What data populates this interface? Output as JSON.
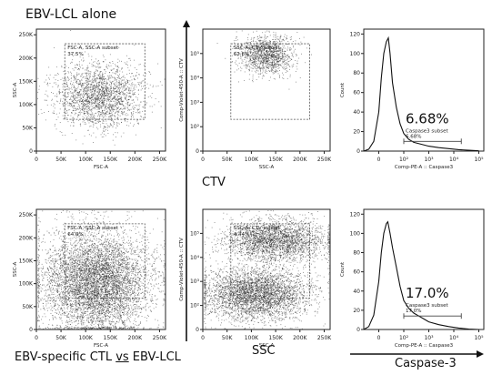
{
  "figure": {
    "top_label": "EBV-LCL alone",
    "bottom_label_prefix": "EBV-specific CTL ",
    "bottom_label_vs": "vs",
    "bottom_label_suffix": " EBV-LCL",
    "ctv_label": "CTV",
    "ssc_label": "SSC",
    "caspase_label": "Caspase-3"
  },
  "chart_data": [
    {
      "id": "top-left",
      "type": "scatter",
      "title": "",
      "xlabel": "FSC-A",
      "ylabel": "SSC-A",
      "xticks": [
        "0",
        "50K",
        "100K",
        "150K",
        "200K",
        "250K"
      ],
      "yticks": [
        "0",
        "50K",
        "100K",
        "150K",
        "200K",
        "250K"
      ],
      "xlim": [
        0,
        262144
      ],
      "ylim": [
        0,
        262144
      ],
      "gate_name": "FSC-A, SSC-A subset",
      "gate_value": "37.5%",
      "cloud": {
        "cx": 125000,
        "cy": 120000,
        "sx": 45000,
        "sy": 35000,
        "n": 2200
      }
    },
    {
      "id": "top-middle",
      "type": "scatter",
      "title": "",
      "xlabel": "SSC-A",
      "ylabel": "Comp-Violet-450-A :: CTV",
      "xticks": [
        "0",
        "50K",
        "100K",
        "150K",
        "200K",
        "250K"
      ],
      "yticks": [
        "0",
        "10²",
        "10³",
        "10⁴",
        "10⁵"
      ],
      "xlim": [
        0,
        262144
      ],
      "ylim": [
        0,
        5
      ],
      "gate_name": "SSC-A, CTV subset",
      "gate_value": "62.8%",
      "cloud": {
        "cx": 130000,
        "cy": 3.95,
        "sx": 28000,
        "sy": 0.4,
        "n": 1300
      }
    },
    {
      "id": "top-right",
      "type": "histogram",
      "title": "",
      "xlabel": "Comp-PE-A :: Caspase3",
      "ylabel": "Count",
      "xticks": [
        "0",
        "10²",
        "10³",
        "10⁴",
        "10⁵"
      ],
      "yticks": [
        "0",
        "20",
        "40",
        "60",
        "80",
        "100",
        "120"
      ],
      "ylim": [
        0,
        125
      ],
      "curve": [
        [
          -0.6,
          0
        ],
        [
          -0.4,
          2
        ],
        [
          -0.2,
          10
        ],
        [
          0,
          40
        ],
        [
          0.1,
          75
        ],
        [
          0.2,
          100
        ],
        [
          0.3,
          112
        ],
        [
          0.38,
          116
        ],
        [
          0.45,
          100
        ],
        [
          0.55,
          70
        ],
        [
          0.7,
          45
        ],
        [
          0.85,
          28
        ],
        [
          1,
          18
        ],
        [
          1.2,
          12
        ],
        [
          1.4,
          9
        ],
        [
          1.7,
          7
        ],
        [
          2,
          5
        ],
        [
          2.4,
          3.5
        ],
        [
          2.8,
          2.5
        ],
        [
          3.2,
          1.5
        ],
        [
          3.6,
          0.8
        ],
        [
          4,
          0.3
        ]
      ],
      "gate": [
        1.0,
        3.3
      ],
      "gate_level": 10,
      "gate_name": "Caspase3 subset",
      "gate_value": "6.68%",
      "big_value": "6.68%"
    },
    {
      "id": "bottom-left",
      "type": "scatter",
      "title": "",
      "xlabel": "FSC-A",
      "ylabel": "SSC-A",
      "xticks": [
        "0",
        "50K",
        "100K",
        "150K",
        "200K",
        "250K"
      ],
      "yticks": [
        "0",
        "50K",
        "100K",
        "150K",
        "200K",
        "250K"
      ],
      "xlim": [
        0,
        262144
      ],
      "ylim": [
        0,
        262144
      ],
      "gate_name": "FSC-A, SSC-A subset",
      "gate_value": "64.0%",
      "cloud": {
        "cx": 120000,
        "cy": 105000,
        "sx": 55000,
        "sy": 55000,
        "n": 6000
      }
    },
    {
      "id": "bottom-middle",
      "type": "scatter",
      "title": "",
      "xlabel": "SSC-A",
      "ylabel": "Comp-Violet-450-A :: CTV",
      "xticks": [
        "0",
        "50K",
        "100K",
        "150K",
        "200K",
        "250K"
      ],
      "yticks": [
        "0",
        "10²",
        "10³",
        "10⁴",
        "10⁵"
      ],
      "xlim": [
        0,
        262144
      ],
      "ylim": [
        0,
        5
      ],
      "gate_name": "SSC-A, CTV subset",
      "gate_value": "4.44%",
      "cloud": {
        "cx": 150000,
        "cy": 3.7,
        "sx": 55000,
        "sy": 0.45,
        "n": 2600
      },
      "cloud2": {
        "cx": 110000,
        "cy": 1.5,
        "sx": 55000,
        "sy": 0.55,
        "n": 3600
      }
    },
    {
      "id": "bottom-right",
      "type": "histogram",
      "title": "",
      "xlabel": "Comp-PE-A :: Caspase3",
      "ylabel": "Count",
      "xticks": [
        "0",
        "10²",
        "10³",
        "10⁴",
        "10⁵"
      ],
      "yticks": [
        "0",
        "20",
        "40",
        "60",
        "80",
        "100",
        "120"
      ],
      "ylim": [
        0,
        125
      ],
      "curve": [
        [
          -0.6,
          0
        ],
        [
          -0.4,
          3
        ],
        [
          -0.2,
          15
        ],
        [
          0,
          50
        ],
        [
          0.1,
          80
        ],
        [
          0.2,
          100
        ],
        [
          0.3,
          110
        ],
        [
          0.36,
          112
        ],
        [
          0.45,
          100
        ],
        [
          0.55,
          85
        ],
        [
          0.7,
          65
        ],
        [
          0.85,
          45
        ],
        [
          1,
          30
        ],
        [
          1.2,
          22
        ],
        [
          1.4,
          17
        ],
        [
          1.6,
          14
        ],
        [
          1.8,
          11
        ],
        [
          2,
          8
        ],
        [
          2.4,
          5
        ],
        [
          2.8,
          3
        ],
        [
          3.2,
          1.5
        ],
        [
          3.6,
          0.5
        ],
        [
          4,
          0
        ]
      ],
      "gate": [
        1.0,
        3.3
      ],
      "gate_level": 14,
      "gate_name": "Caspase3 subset",
      "gate_value": "17.0%",
      "big_value": "17.0%"
    }
  ]
}
